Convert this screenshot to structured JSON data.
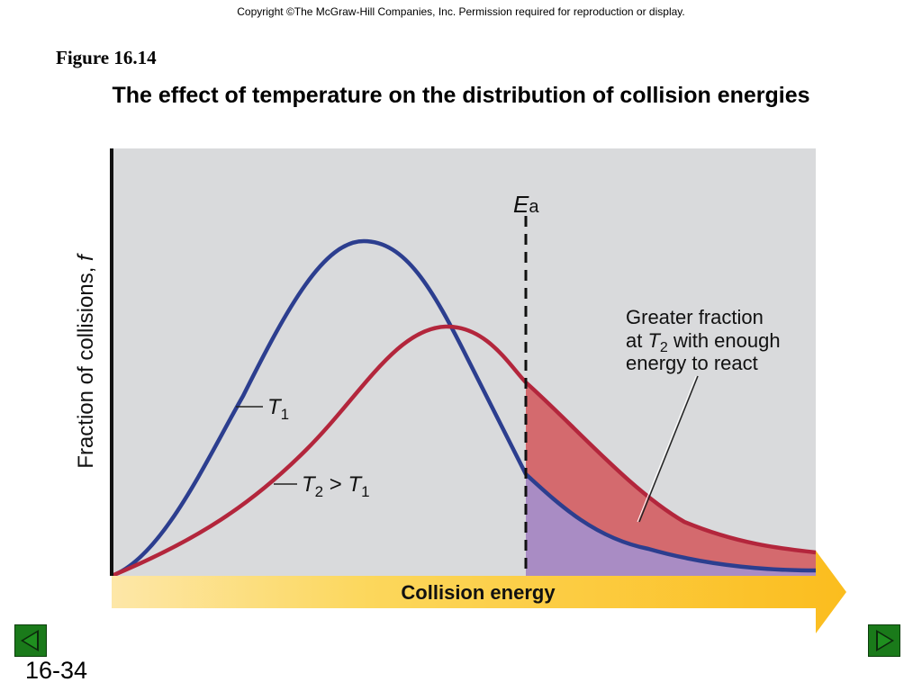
{
  "copyright": "Copyright ©The McGraw-Hill Companies, Inc.  Permission required for reproduction or display.",
  "figure_label": "Figure 16.14",
  "title": "The effect of temperature on the distribution of collision energies",
  "diagram": {
    "y_axis_label_main": "Fraction of collisions, ",
    "y_axis_label_var": "f",
    "x_axis_label": "Collision energy",
    "ea_symbol": "E",
    "ea_subscript": "a",
    "t1_symbol": "T",
    "t1_subscript": "1",
    "t2_symbol": "T",
    "t2_subscript": "2",
    "t2_relation": " > ",
    "t2_ref_symbol": "T",
    "t2_ref_subscript": "1",
    "annotation_line1": "Greater fraction",
    "annotation_line2_prefix": "at ",
    "annotation_line2_symbol": "T",
    "annotation_line2_subscript": "2",
    "annotation_line2_suffix": " with enough",
    "annotation_line3": "energy to react",
    "colors": {
      "background": "#d9dadc",
      "t1_curve": "#2c3e8f",
      "t2_curve": "#b3263c",
      "t2_area": "#d46a6e",
      "t1_area": "#a98cc4",
      "arrow": "#fcc62e"
    }
  },
  "slide_number": "16-34",
  "nav": {
    "prev_icon": "left-triangle-icon",
    "next_icon": "right-triangle-icon"
  }
}
